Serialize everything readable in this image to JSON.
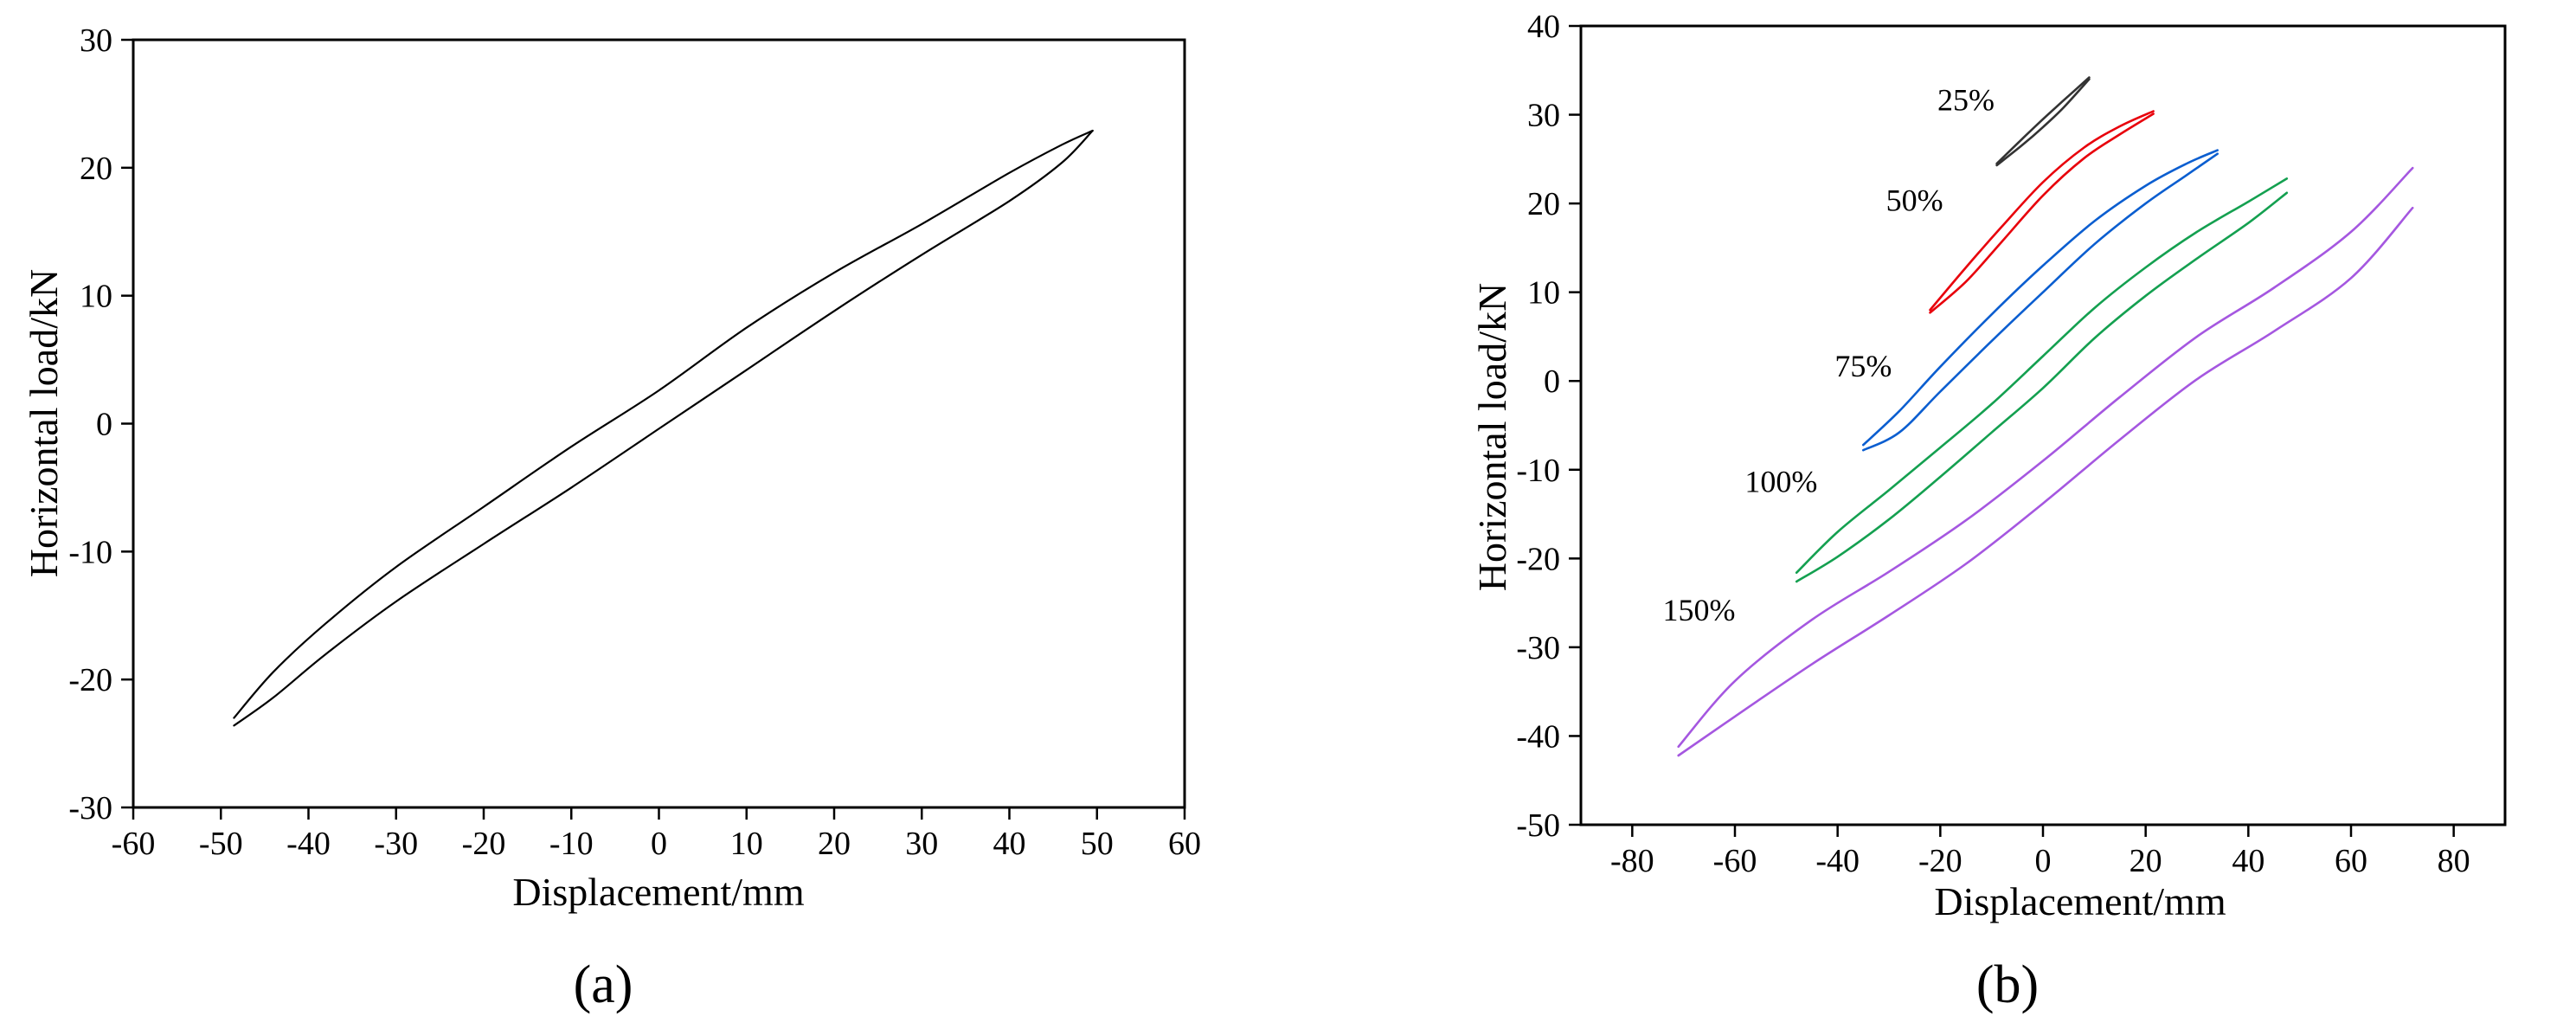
{
  "chart_data": [
    {
      "type": "line",
      "panel_label": "(a)",
      "xlabel": "Displacement/mm",
      "ylabel": "Horizontal load/kN",
      "xlim": [
        -60,
        60
      ],
      "ylim": [
        -30,
        30
      ],
      "xticks": [
        -60,
        -50,
        -40,
        -30,
        -20,
        -10,
        0,
        10,
        20,
        30,
        40,
        50,
        60
      ],
      "yticks": [
        -30,
        -20,
        -10,
        0,
        10,
        20,
        30
      ],
      "grid": false,
      "legend": "none",
      "series": [
        {
          "color": "#000000",
          "loop": {
            "x": [
              -48.5,
              -44,
              -38,
              -30,
              -20,
              -10,
              0,
              10,
              20,
              30,
              40,
              46,
              49.5
            ],
            "upper": [
              -23.0,
              -19.4,
              -15.6,
              -11.2,
              -6.5,
              -1.8,
              2.6,
              7.5,
              11.8,
              15.6,
              19.6,
              21.8,
              22.9
            ],
            "lower": [
              -23.6,
              -21.4,
              -18.0,
              -13.9,
              -9.4,
              -5.0,
              -0.4,
              4.2,
              8.8,
              13.2,
              17.4,
              20.4,
              22.9
            ]
          }
        }
      ]
    },
    {
      "type": "line",
      "panel_label": "(b)",
      "xlabel": "Displacement/mm",
      "ylabel": "Horizontal load/kN",
      "xlim": [
        -90,
        90
      ],
      "ylim": [
        -50,
        40
      ],
      "xticks": [
        -80,
        -60,
        -40,
        -20,
        0,
        20,
        40,
        60,
        80
      ],
      "yticks": [
        -50,
        -40,
        -30,
        -20,
        -10,
        0,
        10,
        20,
        30,
        40
      ],
      "grid": false,
      "legend": "none",
      "series": [
        {
          "name": "25%",
          "color": "#333333",
          "label_at": [
            -15,
            30.5
          ],
          "loop": {
            "x": [
              -9,
              -4,
              0,
              4,
              9
            ],
            "upper": [
              24.5,
              27.3,
              29.5,
              31.6,
              34.2
            ],
            "lower": [
              24.3,
              26.6,
              28.6,
              30.8,
              34.0
            ]
          }
        },
        {
          "name": "50%",
          "color": "#e8000b",
          "label_at": [
            -25,
            19.2
          ],
          "loop": {
            "x": [
              -22,
              -15,
              -8,
              0,
              8,
              15,
              21.5
            ],
            "upper": [
              8.0,
              12.8,
              17.4,
              22.4,
              26.3,
              28.7,
              30.4
            ],
            "lower": [
              7.7,
              11.2,
              15.7,
              20.9,
              25.1,
              27.8,
              30.1
            ]
          }
        },
        {
          "name": "75%",
          "color": "#0b5ed0",
          "label_at": [
            -35,
            0.5
          ],
          "loop": {
            "x": [
              -35,
              -28,
              -20,
              -10,
              0,
              10,
              20,
              28,
              34
            ],
            "upper": [
              -7.2,
              -3.4,
              1.6,
              7.5,
              13.0,
              18.0,
              22.0,
              24.5,
              26.0
            ],
            "lower": [
              -7.8,
              -5.8,
              -1.2,
              4.5,
              10.0,
              15.4,
              20.0,
              23.2,
              25.6
            ]
          }
        },
        {
          "name": "100%",
          "color": "#14a050",
          "label_at": [
            -51,
            -12.5
          ],
          "loop": {
            "x": [
              -48,
              -40,
              -30,
              -20,
              -10,
              0,
              10,
              20,
              30,
              40,
              47.5
            ],
            "upper": [
              -21.6,
              -17.0,
              -12.3,
              -7.5,
              -2.6,
              2.8,
              8.2,
              12.8,
              16.8,
              20.2,
              22.8
            ],
            "lower": [
              -22.6,
              -19.8,
              -15.6,
              -10.8,
              -5.8,
              -0.8,
              4.8,
              9.6,
              13.8,
              17.8,
              21.2
            ]
          }
        },
        {
          "name": "150%",
          "color": "#a557e0",
          "label_at": [
            -67,
            -27
          ],
          "loop": {
            "x": [
              -71,
              -60,
              -45,
              -30,
              -15,
              0,
              15,
              30,
              45,
              60,
              72
            ],
            "upper": [
              -41.2,
              -33.8,
              -26.9,
              -21.5,
              -15.7,
              -9.0,
              -1.8,
              5.0,
              10.5,
              16.8,
              24.0
            ],
            "lower": [
              -42.2,
              -37.8,
              -31.9,
              -26.4,
              -20.6,
              -13.8,
              -6.6,
              0.2,
              5.6,
              11.6,
              19.5
            ]
          }
        }
      ]
    }
  ]
}
